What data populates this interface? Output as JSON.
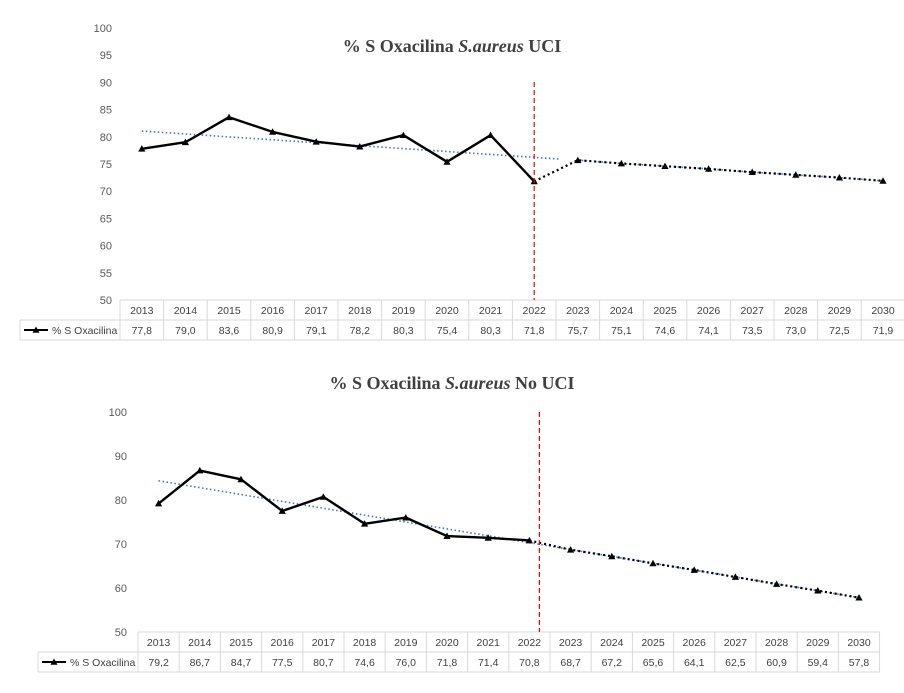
{
  "chart_data": [
    {
      "type": "line",
      "title_parts": [
        "% S Oxacilina ",
        "S.aureus",
        " UCI"
      ],
      "legend_label": "% S Oxacilina",
      "categories": [
        "2013",
        "2014",
        "2015",
        "2016",
        "2017",
        "2018",
        "2019",
        "2020",
        "2021",
        "2022",
        "2023",
        "2024",
        "2025",
        "2026",
        "2027",
        "2028",
        "2029",
        "2030"
      ],
      "values": [
        77.8,
        79.0,
        83.6,
        80.9,
        79.1,
        78.2,
        80.3,
        75.4,
        80.3,
        71.8,
        75.7,
        75.1,
        74.6,
        74.1,
        73.5,
        73.0,
        72.5,
        71.9
      ],
      "value_labels": [
        "77,8",
        "79,0",
        "83,6",
        "80,9",
        "79,1",
        "78,2",
        "80,3",
        "75,4",
        "80,3",
        "71,8",
        "75,7",
        "75,1",
        "74,6",
        "74,1",
        "73,5",
        "73,0",
        "72,5",
        "71,9"
      ],
      "observed_through": "2022",
      "forecast_from": "2023",
      "trendline": "linear (observed 2013–2022), dotted blue",
      "divider_at": "2022",
      "ylim": [
        50,
        100
      ],
      "yticks": [
        50,
        55,
        60,
        65,
        70,
        75,
        80,
        85,
        90,
        95,
        100
      ],
      "grid": false,
      "data_table": true,
      "colors": {
        "series": "#000000",
        "trend": "#4472c4",
        "divider": "#ff0000"
      }
    },
    {
      "type": "line",
      "title_parts": [
        "% S Oxacilina ",
        "S.aureus",
        " No UCI"
      ],
      "legend_label": "% S Oxacilina",
      "categories": [
        "2013",
        "2014",
        "2015",
        "2016",
        "2017",
        "2018",
        "2019",
        "2020",
        "2021",
        "2022",
        "2023",
        "2024",
        "2025",
        "2026",
        "2027",
        "2028",
        "2029",
        "2030"
      ],
      "values": [
        79.2,
        86.7,
        84.7,
        77.5,
        80.7,
        74.6,
        76.0,
        71.8,
        71.4,
        70.8,
        68.7,
        67.2,
        65.6,
        64.1,
        62.5,
        60.9,
        59.4,
        57.8
      ],
      "value_labels": [
        "79,2",
        "86,7",
        "84,7",
        "77,5",
        "80,7",
        "74,6",
        "76,0",
        "71,8",
        "71,4",
        "70,8",
        "68,7",
        "67,2",
        "65,6",
        "64,1",
        "62,5",
        "60,9",
        "59,4",
        "57,8"
      ],
      "observed_through": "2022",
      "forecast_from": "2023",
      "trendline": "linear (observed 2013–2022), dotted blue",
      "divider_at": "2022",
      "ylim": [
        50,
        100
      ],
      "yticks": [
        50,
        60,
        70,
        80,
        90,
        100
      ],
      "grid": false,
      "data_table": true,
      "colors": {
        "series": "#000000",
        "trend": "#4472c4",
        "divider": "#ff0000"
      }
    }
  ]
}
